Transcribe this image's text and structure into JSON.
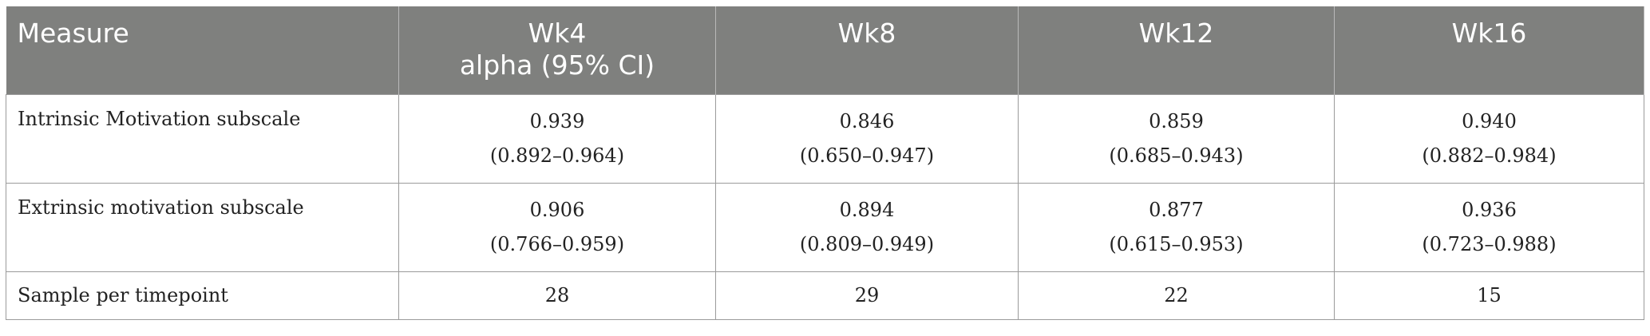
{
  "table": {
    "headers": {
      "measure": "Measure",
      "wk4_line1": "Wk4",
      "wk4_line2": "alpha (95% CI)",
      "wk8": "Wk8",
      "wk12": "Wk12",
      "wk16": "Wk16"
    },
    "rows": [
      {
        "label": "Intrinsic Motivation subscale",
        "cells": [
          {
            "value": "0.939",
            "ci": "(0.892–0.964)"
          },
          {
            "value": "0.846",
            "ci": "(0.650–0.947)"
          },
          {
            "value": "0.859",
            "ci": "(0.685–0.943)"
          },
          {
            "value": "0.940",
            "ci": "(0.882–0.984)"
          }
        ]
      },
      {
        "label": "Extrinsic motivation subscale",
        "cells": [
          {
            "value": "0.906",
            "ci": "(0.766–0.959)"
          },
          {
            "value": "0.894",
            "ci": "(0.809–0.949)"
          },
          {
            "value": "0.877",
            "ci": "(0.615–0.953)"
          },
          {
            "value": "0.936",
            "ci": "(0.723–0.988)"
          }
        ]
      },
      {
        "label": "Sample per timepoint",
        "cells": [
          {
            "value": "28"
          },
          {
            "value": "29"
          },
          {
            "value": "22"
          },
          {
            "value": "15"
          }
        ]
      }
    ]
  },
  "colors": {
    "header_background": "#7f807e",
    "header_text": "#ffffff",
    "border": "#9b9b9b"
  }
}
